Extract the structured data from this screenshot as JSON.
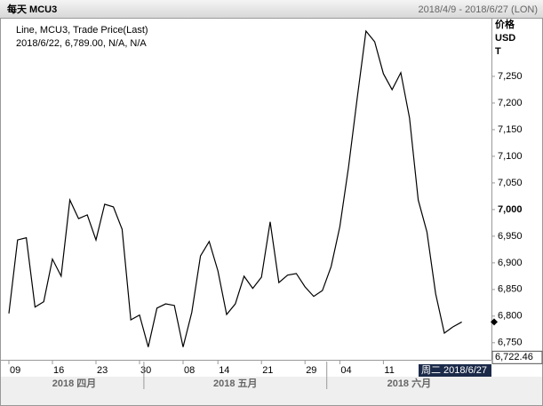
{
  "header": {
    "title": "每天 MCU3",
    "range": "2018/4/9 - 2018/6/27 (LON)"
  },
  "chart_data": {
    "type": "line",
    "legend": [
      "Line, MCU3, Trade Price(Last)",
      "2018/6/22, 6,789.00, N/A, N/A"
    ],
    "y_label": [
      "价格",
      "USD",
      "T"
    ],
    "x": [
      "2018-04-09",
      "2018-04-10",
      "2018-04-11",
      "2018-04-12",
      "2018-04-13",
      "2018-04-16",
      "2018-04-17",
      "2018-04-18",
      "2018-04-19",
      "2018-04-20",
      "2018-04-23",
      "2018-04-24",
      "2018-04-25",
      "2018-04-26",
      "2018-04-27",
      "2018-04-30",
      "2018-05-01",
      "2018-05-02",
      "2018-05-03",
      "2018-05-04",
      "2018-05-08",
      "2018-05-09",
      "2018-05-10",
      "2018-05-11",
      "2018-05-14",
      "2018-05-15",
      "2018-05-16",
      "2018-05-17",
      "2018-05-18",
      "2018-05-21",
      "2018-05-22",
      "2018-05-23",
      "2018-05-24",
      "2018-05-25",
      "2018-05-29",
      "2018-05-30",
      "2018-05-31",
      "2018-06-01",
      "2018-06-04",
      "2018-06-05",
      "2018-06-06",
      "2018-06-07",
      "2018-06-08",
      "2018-06-11",
      "2018-06-12",
      "2018-06-13",
      "2018-06-14",
      "2018-06-15",
      "2018-06-18",
      "2018-06-19",
      "2018-06-20",
      "2018-06-21",
      "2018-06-22"
    ],
    "series": [
      {
        "name": "MCU3",
        "color": "#000000",
        "values": [
          6805,
          6943,
          6947,
          6817,
          6827,
          6907,
          6875,
          7018,
          6983,
          6990,
          6943,
          7010,
          7005,
          6963,
          6793,
          6802,
          6742,
          6815,
          6823,
          6820,
          6742,
          6807,
          6913,
          6940,
          6885,
          6803,
          6823,
          6875,
          6852,
          6873,
          6977,
          6863,
          6877,
          6880,
          6855,
          6837,
          6848,
          6893,
          6968,
          7080,
          7210,
          7335,
          7315,
          7255,
          7225,
          7257,
          7172,
          7018,
          6958,
          6842,
          6768,
          6780,
          6789
        ]
      }
    ],
    "ylim": [
      6718,
      7360
    ],
    "yticks": [
      {
        "value": 6750,
        "label": "6,750"
      },
      {
        "value": 6800,
        "label": "6,800"
      },
      {
        "value": 6850,
        "label": "6,850"
      },
      {
        "value": 6900,
        "label": "6,900"
      },
      {
        "value": 6950,
        "label": "6,950"
      },
      {
        "value": 7000,
        "label": "7,000"
      },
      {
        "value": 7050,
        "label": "7,050"
      },
      {
        "value": 7100,
        "label": "7,100"
      },
      {
        "value": 7150,
        "label": "7,150"
      },
      {
        "value": 7200,
        "label": "7,200"
      },
      {
        "value": 7250,
        "label": "7,250"
      }
    ],
    "xticks": [
      {
        "value": "2018-04-09",
        "label": "09"
      },
      {
        "value": "2018-04-16",
        "label": "16"
      },
      {
        "value": "2018-04-23",
        "label": "23"
      },
      {
        "value": "2018-04-30",
        "label": "30"
      },
      {
        "value": "2018-05-08",
        "label": "08"
      },
      {
        "value": "2018-05-14",
        "label": "14"
      },
      {
        "value": "2018-05-21",
        "label": "21"
      },
      {
        "value": "2018-05-29",
        "label": "29"
      },
      {
        "value": "2018-06-04",
        "label": "04"
      },
      {
        "value": "2018-06-11",
        "label": "11"
      }
    ],
    "months": [
      {
        "value": "2018-04",
        "label": "2018 四月"
      },
      {
        "value": "2018-05",
        "label": "2018 五月"
      },
      {
        "value": "2018-06",
        "label": "2018 六月"
      }
    ],
    "price_marker": {
      "value": 6722.46,
      "label": "6,722.46"
    },
    "cursor_label": "周二 2018/6/27"
  }
}
